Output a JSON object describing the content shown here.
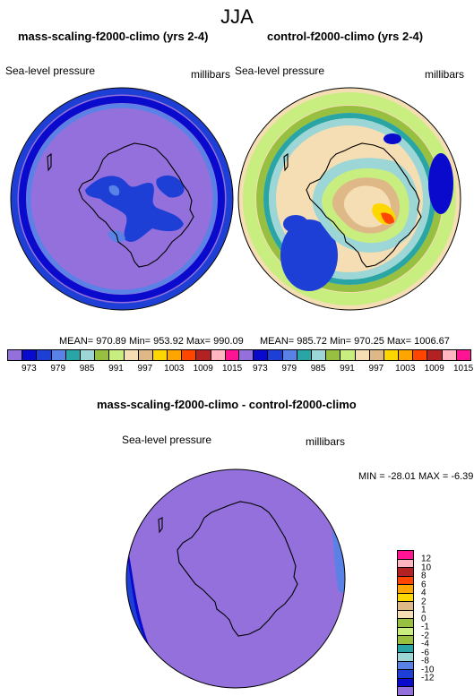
{
  "title": "JJA",
  "panels": [
    {
      "title": "mass-scaling-f2000-climo (yrs 2-4)",
      "left_label": "Sea-level pressure",
      "right_label": "millibars",
      "stats": "MEAN= 970.89  Min= 953.92  Max= 990.09"
    },
    {
      "title": "control-f2000-climo (yrs 2-4)",
      "left_label": "Sea-level pressure",
      "right_label": "millibars",
      "stats": "MEAN= 985.72  Min= 970.25  Max= 1006.67"
    }
  ],
  "colorbar_top": {
    "colors": [
      "#9370DB",
      "#0A0ACD",
      "#1E3FD6",
      "#5A82E6",
      "#2AA5A5",
      "#9CD6D6",
      "#98C040",
      "#C8EE80",
      "#F5DEB3",
      "#DEB887",
      "#FFD700",
      "#FFA500",
      "#FF4500",
      "#B22222",
      "#FFB6C1",
      "#FF1493"
    ],
    "tick_labels": [
      "973",
      "979",
      "985",
      "991",
      "997",
      "1003",
      "1009",
      "1015"
    ]
  },
  "diff_panel": {
    "title": "mass-scaling-f2000-climo - control-f2000-climo",
    "left_label": "Sea-level pressure",
    "right_label": "millibars",
    "stats": "MIN = -28.01  MAX =  -6.39"
  },
  "colorbar_diff": {
    "colors": [
      "#FF1493",
      "#FFB6C1",
      "#B22222",
      "#FF4500",
      "#FFA500",
      "#FFD700",
      "#DEB887",
      "#F5DEB3",
      "#98C040",
      "#C8EE80",
      "#98C040",
      "#2AA5A5",
      "#9CD6D6",
      "#5A82E6",
      "#1E3FD6",
      "#0A0ACD",
      "#9370DB"
    ],
    "tick_labels": [
      "12",
      "10",
      "8",
      "6",
      "4",
      "2",
      "1",
      "0",
      "-1",
      "-2",
      "-4",
      "-6",
      "-8",
      "-10",
      "-12"
    ]
  },
  "map_colors": {
    "violet": "#9370DB",
    "dark_blue": "#0A0ACD",
    "blue": "#1E3FD6",
    "mid_blue": "#5A82E6",
    "light_blue": "#9CD6D6",
    "teal": "#2AA5A5",
    "green": "#98C040",
    "light_green": "#C8EE80",
    "wheat": "#F5DEB3",
    "tan": "#DEB887",
    "yellow": "#FFD700",
    "orange": "#FFA500",
    "red_orange": "#FF4500"
  }
}
